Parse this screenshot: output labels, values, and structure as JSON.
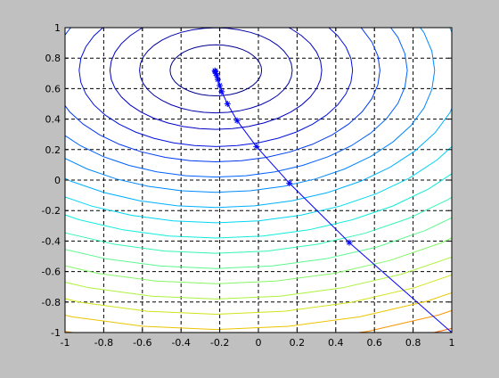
{
  "chart_data": {
    "type": "contour",
    "title": "",
    "xlabel": "",
    "ylabel": "",
    "xlim": [
      -1,
      1
    ],
    "ylim": [
      -1,
      1
    ],
    "xticks": [
      "-1",
      "-0.8",
      "-0.6",
      "-0.4",
      "-0.2",
      "0",
      "0.2",
      "0.4",
      "0.6",
      "0.8",
      "1"
    ],
    "yticks": [
      "1",
      "0.8",
      "0.6",
      "0.4",
      "0.2",
      "0",
      "-0.2",
      "-0.4",
      "-0.6",
      "-0.8",
      "-1"
    ],
    "grid": true,
    "grid_style": "dashed",
    "background": "#c0c0c0",
    "axes_background": "#ffffff",
    "contour": {
      "center": [
        -0.22,
        0.72
      ],
      "a": 0.5,
      "b": 1.0,
      "levels": [
        0.028,
        0.078,
        0.15,
        0.25,
        0.36,
        0.49,
        0.64,
        0.81,
        1.0,
        1.21,
        1.44,
        1.69,
        1.96,
        2.25,
        2.56,
        2.89,
        3.24,
        3.61,
        4.0
      ],
      "colors": [
        "#00008f",
        "#0000a8",
        "#0000c4",
        "#0010df",
        "#0038f2",
        "#0060ff",
        "#0088ff",
        "#00b0ff",
        "#00d6f4",
        "#10ecda",
        "#34f5b8",
        "#5cf78f",
        "#84f767",
        "#acf23e",
        "#d0e31a",
        "#ecc400",
        "#fb9500",
        "#ff5e00",
        "#ff2400"
      ]
    },
    "path_color": "#0000ff",
    "path": [
      {
        "x": 1.0,
        "y": -1.0
      },
      {
        "x": 0.47,
        "y": -0.41
      },
      {
        "x": 0.16,
        "y": -0.02
      },
      {
        "x": -0.01,
        "y": 0.22
      },
      {
        "x": -0.11,
        "y": 0.39
      },
      {
        "x": -0.16,
        "y": 0.5
      },
      {
        "x": -0.19,
        "y": 0.58
      },
      {
        "x": -0.2,
        "y": 0.62
      },
      {
        "x": -0.21,
        "y": 0.66
      },
      {
        "x": -0.215,
        "y": 0.685
      },
      {
        "x": -0.22,
        "y": 0.7
      },
      {
        "x": -0.223,
        "y": 0.712
      },
      {
        "x": -0.225,
        "y": 0.718
      }
    ]
  }
}
